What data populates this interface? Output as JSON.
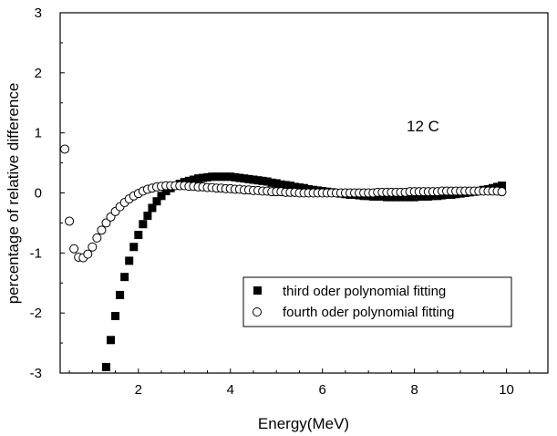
{
  "chart_data": {
    "type": "scatter",
    "title": "",
    "annotation": "12 C",
    "xlabel": "Energy(MeV)",
    "ylabel": "percentage of relative difference",
    "xlim": [
      0.3,
      10.9
    ],
    "ylim": [
      -3,
      3
    ],
    "xticks": [
      2,
      4,
      6,
      8,
      10
    ],
    "yticks": [
      -3,
      -2,
      -1,
      0,
      1,
      2,
      3
    ],
    "grid": false,
    "legend_position": "bottom-right",
    "series": [
      {
        "name": "third oder polynomial fitting",
        "marker": "filled-square",
        "color": "#000000",
        "points": [
          [
            1.3,
            -2.9
          ],
          [
            1.4,
            -2.45
          ],
          [
            1.5,
            -2.05
          ],
          [
            1.6,
            -1.7
          ],
          [
            1.7,
            -1.4
          ],
          [
            1.8,
            -1.13
          ],
          [
            1.9,
            -0.9
          ],
          [
            2.0,
            -0.7
          ],
          [
            2.1,
            -0.52
          ],
          [
            2.2,
            -0.38
          ],
          [
            2.3,
            -0.25
          ],
          [
            2.4,
            -0.14
          ],
          [
            2.5,
            -0.05
          ],
          [
            2.6,
            0.03
          ],
          [
            2.7,
            0.08
          ],
          [
            2.8,
            0.12
          ],
          [
            2.9,
            0.15
          ],
          [
            3.0,
            0.18
          ],
          [
            3.1,
            0.2
          ],
          [
            3.2,
            0.22
          ],
          [
            3.3,
            0.24
          ],
          [
            3.4,
            0.25
          ],
          [
            3.5,
            0.26
          ],
          [
            3.6,
            0.27
          ],
          [
            3.7,
            0.27
          ],
          [
            3.8,
            0.27
          ],
          [
            3.9,
            0.27
          ],
          [
            4.0,
            0.27
          ],
          [
            4.1,
            0.26
          ],
          [
            4.2,
            0.25
          ],
          [
            4.3,
            0.24
          ],
          [
            4.4,
            0.23
          ],
          [
            4.5,
            0.22
          ],
          [
            4.6,
            0.21
          ],
          [
            4.7,
            0.2
          ],
          [
            4.8,
            0.19
          ],
          [
            4.9,
            0.17
          ],
          [
            5.0,
            0.16
          ],
          [
            5.1,
            0.14
          ],
          [
            5.2,
            0.13
          ],
          [
            5.3,
            0.12
          ],
          [
            5.4,
            0.1
          ],
          [
            5.5,
            0.09
          ],
          [
            5.6,
            0.08
          ],
          [
            5.7,
            0.06
          ],
          [
            5.8,
            0.05
          ],
          [
            5.9,
            0.04
          ],
          [
            6.0,
            0.03
          ],
          [
            6.1,
            0.02
          ],
          [
            6.2,
            0.01
          ],
          [
            6.3,
            0.0
          ],
          [
            6.4,
            -0.01
          ],
          [
            6.5,
            -0.02
          ],
          [
            6.6,
            -0.03
          ],
          [
            6.7,
            -0.03
          ],
          [
            6.8,
            -0.04
          ],
          [
            6.9,
            -0.05
          ],
          [
            7.0,
            -0.05
          ],
          [
            7.1,
            -0.06
          ],
          [
            7.2,
            -0.06
          ],
          [
            7.3,
            -0.06
          ],
          [
            7.4,
            -0.07
          ],
          [
            7.5,
            -0.07
          ],
          [
            7.6,
            -0.07
          ],
          [
            7.7,
            -0.07
          ],
          [
            7.8,
            -0.07
          ],
          [
            7.9,
            -0.07
          ],
          [
            8.0,
            -0.07
          ],
          [
            8.1,
            -0.06
          ],
          [
            8.2,
            -0.06
          ],
          [
            8.3,
            -0.06
          ],
          [
            8.4,
            -0.05
          ],
          [
            8.5,
            -0.05
          ],
          [
            8.6,
            -0.04
          ],
          [
            8.7,
            -0.03
          ],
          [
            8.8,
            -0.03
          ],
          [
            8.9,
            -0.02
          ],
          [
            9.0,
            -0.01
          ],
          [
            9.1,
            0.0
          ],
          [
            9.2,
            0.01
          ],
          [
            9.3,
            0.02
          ],
          [
            9.4,
            0.03
          ],
          [
            9.5,
            0.05
          ],
          [
            9.6,
            0.06
          ],
          [
            9.7,
            0.08
          ],
          [
            9.8,
            0.1
          ],
          [
            9.9,
            0.12
          ]
        ]
      },
      {
        "name": "fourth oder polynomial fitting",
        "marker": "open-circle",
        "color": "#000000",
        "points": [
          [
            0.4,
            0.73
          ],
          [
            0.5,
            -0.47
          ],
          [
            0.6,
            -0.93
          ],
          [
            0.7,
            -1.07
          ],
          [
            0.8,
            -1.08
          ],
          [
            0.9,
            -1.02
          ],
          [
            1.0,
            -0.9
          ],
          [
            1.1,
            -0.75
          ],
          [
            1.2,
            -0.62
          ],
          [
            1.3,
            -0.5
          ],
          [
            1.4,
            -0.4
          ],
          [
            1.5,
            -0.31
          ],
          [
            1.6,
            -0.23
          ],
          [
            1.7,
            -0.16
          ],
          [
            1.8,
            -0.1
          ],
          [
            1.9,
            -0.05
          ],
          [
            2.0,
            -0.01
          ],
          [
            2.1,
            0.03
          ],
          [
            2.2,
            0.06
          ],
          [
            2.3,
            0.08
          ],
          [
            2.4,
            0.1
          ],
          [
            2.5,
            0.11
          ],
          [
            2.6,
            0.12
          ],
          [
            2.7,
            0.12
          ],
          [
            2.8,
            0.12
          ],
          [
            2.9,
            0.12
          ],
          [
            3.0,
            0.12
          ],
          [
            3.1,
            0.11
          ],
          [
            3.2,
            0.11
          ],
          [
            3.3,
            0.1
          ],
          [
            3.4,
            0.1
          ],
          [
            3.5,
            0.09
          ],
          [
            3.6,
            0.09
          ],
          [
            3.7,
            0.08
          ],
          [
            3.8,
            0.08
          ],
          [
            3.9,
            0.07
          ],
          [
            4.0,
            0.07
          ],
          [
            4.1,
            0.06
          ],
          [
            4.2,
            0.06
          ],
          [
            4.3,
            0.05
          ],
          [
            4.4,
            0.05
          ],
          [
            4.5,
            0.04
          ],
          [
            4.6,
            0.04
          ],
          [
            4.7,
            0.03
          ],
          [
            4.8,
            0.03
          ],
          [
            4.9,
            0.02
          ],
          [
            5.0,
            0.02
          ],
          [
            5.1,
            0.02
          ],
          [
            5.2,
            0.01
          ],
          [
            5.3,
            0.01
          ],
          [
            5.4,
            0.01
          ],
          [
            5.5,
            0.0
          ],
          [
            5.6,
            0.0
          ],
          [
            5.7,
            0.0
          ],
          [
            5.8,
            0.0
          ],
          [
            5.9,
            0.0
          ],
          [
            6.0,
            0.0
          ],
          [
            6.1,
            0.0
          ],
          [
            6.2,
            0.0
          ],
          [
            6.3,
            0.0
          ],
          [
            6.4,
            0.0
          ],
          [
            6.5,
            0.0
          ],
          [
            6.6,
            0.0
          ],
          [
            6.7,
            0.0
          ],
          [
            6.8,
            0.0
          ],
          [
            6.9,
            0.0
          ],
          [
            7.0,
            0.0
          ],
          [
            7.1,
            0.0
          ],
          [
            7.2,
            0.01
          ],
          [
            7.3,
            0.01
          ],
          [
            7.4,
            0.01
          ],
          [
            7.5,
            0.01
          ],
          [
            7.6,
            0.01
          ],
          [
            7.7,
            0.01
          ],
          [
            7.8,
            0.01
          ],
          [
            7.9,
            0.02
          ],
          [
            8.0,
            0.02
          ],
          [
            8.1,
            0.02
          ],
          [
            8.2,
            0.02
          ],
          [
            8.3,
            0.02
          ],
          [
            8.4,
            0.02
          ],
          [
            8.5,
            0.02
          ],
          [
            8.6,
            0.03
          ],
          [
            8.7,
            0.03
          ],
          [
            8.8,
            0.03
          ],
          [
            8.9,
            0.03
          ],
          [
            9.0,
            0.03
          ],
          [
            9.1,
            0.03
          ],
          [
            9.2,
            0.03
          ],
          [
            9.3,
            0.03
          ],
          [
            9.4,
            0.03
          ],
          [
            9.5,
            0.03
          ],
          [
            9.6,
            0.03
          ],
          [
            9.7,
            0.03
          ],
          [
            9.8,
            0.03
          ],
          [
            9.9,
            0.02
          ]
        ]
      }
    ]
  }
}
